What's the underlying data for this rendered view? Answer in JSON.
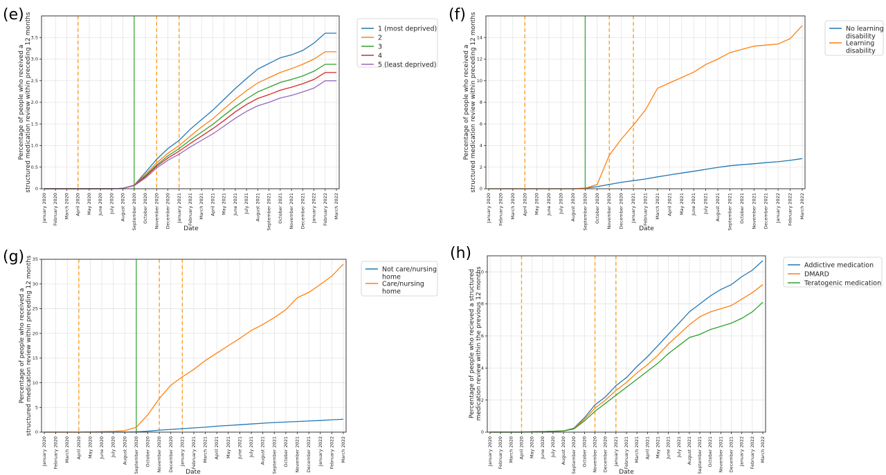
{
  "months": [
    "January 2020",
    "February 2020",
    "March 2020",
    "April 2020",
    "May 2020",
    "June 2020",
    "July 2020",
    "August 2020",
    "September 2020",
    "October 2020",
    "November 2020",
    "December 2020",
    "January 2021",
    "February 2021",
    "March 2021",
    "April 2021",
    "May 2021",
    "June 2021",
    "July 2021",
    "August 2021",
    "September 2021",
    "October 2021",
    "November 2021",
    "December 2021",
    "January 2022",
    "February 2022",
    "March 2022"
  ],
  "colors": {
    "blue": "#1f77b4",
    "orange": "#ff7f0e",
    "green": "#2ca02c",
    "red": "#d62728",
    "purple": "#9467bd",
    "green_vline": "#2ca02c",
    "orange_vline": "#ff9f1c"
  },
  "chart_data": [
    {
      "panel": "(e)",
      "type": "line",
      "xlabel": "Date",
      "ylabel": [
        "Percentage of people who received a",
        "structured medication review within preceding 12 months"
      ],
      "ylim": [
        0,
        4.0
      ],
      "yticks": [
        0,
        0.5,
        1.0,
        1.5,
        2.0,
        2.5,
        3.0,
        3.5
      ],
      "ytick_labels": [
        "0",
        "0.5",
        "1.0",
        "1.5",
        "2.0",
        "2.5",
        "3.0",
        "3.5"
      ],
      "vlines": {
        "green": [
          "September 2020"
        ],
        "orange_dashed": [
          "April 2020",
          "November 2020",
          "January 2021"
        ]
      },
      "legend_position": "right",
      "series": [
        {
          "name": "1 (most deprived)",
          "color": "blue",
          "values": [
            0,
            0,
            0,
            0,
            0,
            0,
            0,
            0.01,
            0.08,
            0.38,
            0.68,
            0.93,
            1.12,
            1.38,
            1.6,
            1.82,
            2.07,
            2.32,
            2.55,
            2.77,
            2.9,
            3.03,
            3.1,
            3.2,
            3.37,
            3.6,
            3.6
          ]
        },
        {
          "name": "2",
          "color": "orange",
          "values": [
            0,
            0,
            0,
            0,
            0,
            0,
            0,
            0.01,
            0.08,
            0.33,
            0.6,
            0.82,
            1.0,
            1.22,
            1.43,
            1.62,
            1.85,
            2.07,
            2.27,
            2.45,
            2.57,
            2.69,
            2.78,
            2.88,
            3.0,
            3.17,
            3.17
          ]
        },
        {
          "name": "3",
          "color": "green",
          "values": [
            0,
            0,
            0,
            0,
            0,
            0,
            0,
            0.01,
            0.08,
            0.3,
            0.55,
            0.76,
            0.93,
            1.13,
            1.31,
            1.49,
            1.7,
            1.9,
            2.08,
            2.24,
            2.35,
            2.46,
            2.53,
            2.61,
            2.72,
            2.88,
            2.88
          ]
        },
        {
          "name": "4",
          "color": "red",
          "values": [
            0,
            0,
            0,
            0,
            0,
            0,
            0,
            0.01,
            0.08,
            0.28,
            0.52,
            0.71,
            0.87,
            1.05,
            1.22,
            1.39,
            1.58,
            1.78,
            1.95,
            2.09,
            2.18,
            2.28,
            2.35,
            2.43,
            2.53,
            2.69,
            2.69
          ]
        },
        {
          "name": "5 (least deprived)",
          "color": "purple",
          "values": [
            0,
            0,
            0,
            0,
            0,
            0,
            0,
            0.01,
            0.07,
            0.25,
            0.48,
            0.66,
            0.8,
            0.97,
            1.12,
            1.27,
            1.45,
            1.63,
            1.79,
            1.92,
            2.0,
            2.1,
            2.16,
            2.24,
            2.33,
            2.5,
            2.5
          ]
        }
      ]
    },
    {
      "panel": "(f)",
      "type": "line",
      "xlabel": "Date",
      "ylabel": [
        "Percentage of people who received a",
        "structured medication review within preceding 12 months"
      ],
      "ylim": [
        0,
        16
      ],
      "yticks": [
        0,
        2,
        4,
        6,
        8,
        10,
        12,
        14
      ],
      "ytick_labels": [
        "0",
        "2",
        "4",
        "6",
        "8",
        "10",
        "12",
        "14"
      ],
      "vlines": {
        "green": [
          "September 2020"
        ],
        "orange_dashed": [
          "April 2020",
          "November 2020",
          "January 2021"
        ]
      },
      "legend_position": "right",
      "series": [
        {
          "name": [
            "No learning",
            "disability"
          ],
          "color": "blue",
          "values": [
            0,
            0,
            0,
            0,
            0,
            0,
            0,
            0,
            0.05,
            0.2,
            0.4,
            0.6,
            0.75,
            0.9,
            1.1,
            1.28,
            1.45,
            1.62,
            1.8,
            1.98,
            2.13,
            2.23,
            2.32,
            2.42,
            2.5,
            2.63,
            2.8
          ]
        },
        {
          "name": [
            "Learning",
            "disability"
          ],
          "color": "orange",
          "values": [
            0,
            0,
            0,
            0,
            0,
            0,
            0,
            0,
            0.05,
            0.4,
            3.1,
            4.6,
            5.9,
            7.3,
            9.3,
            9.8,
            10.3,
            10.8,
            11.5,
            12.0,
            12.6,
            12.9,
            13.2,
            13.3,
            13.4,
            13.9,
            15.1
          ]
        }
      ]
    },
    {
      "panel": "(g)",
      "type": "line",
      "xlabel": "Date",
      "ylabel": [
        "Percentage of people who received a",
        "structured medication review within preceding 12 months"
      ],
      "ylim": [
        0,
        35
      ],
      "yticks": [
        0,
        5,
        10,
        15,
        20,
        25,
        30,
        35
      ],
      "ytick_labels": [
        "0",
        "5",
        "10",
        "15",
        "20",
        "25",
        "30",
        "35"
      ],
      "vlines": {
        "green": [
          "September 2020"
        ],
        "orange_dashed": [
          "April 2020",
          "November 2020",
          "January 2021"
        ]
      },
      "legend_position": "right",
      "series": [
        {
          "name": [
            "Not care/nursing",
            "home"
          ],
          "color": "blue",
          "values": [
            0,
            0,
            0,
            0,
            0,
            0,
            0,
            0,
            0.05,
            0.2,
            0.4,
            0.55,
            0.7,
            0.85,
            1.0,
            1.2,
            1.35,
            1.5,
            1.65,
            1.8,
            1.95,
            2.05,
            2.15,
            2.25,
            2.35,
            2.5,
            2.6
          ]
        },
        {
          "name": [
            "Care/nursing",
            "home"
          ],
          "color": "orange",
          "values": [
            0,
            0,
            0,
            0,
            0.05,
            0.1,
            0.15,
            0.3,
            1.0,
            3.5,
            6.8,
            9.5,
            11.2,
            12.7,
            14.5,
            16.0,
            17.5,
            19.0,
            20.6,
            21.8,
            23.2,
            24.8,
            27.2,
            28.3,
            29.9,
            31.6,
            34.0
          ]
        }
      ]
    },
    {
      "panel": "(h)",
      "type": "line",
      "xlabel": "Date",
      "ylabel": [
        "Percentage of people who recieved a structured",
        "medication review within the previous 12 months"
      ],
      "ylim": [
        0,
        11
      ],
      "yticks": [
        0,
        2,
        4,
        6,
        8,
        10
      ],
      "ytick_labels": [
        "0",
        "2",
        "4",
        "6",
        "8",
        "10"
      ],
      "vlines": {
        "green": [],
        "orange_dashed": [
          "April 2020",
          "November 2020",
          "January 2021"
        ]
      },
      "legend_position": "top-right",
      "series": [
        {
          "name": "Addictive medication",
          "color": "blue",
          "values": [
            0,
            0,
            0,
            0,
            0.02,
            0.03,
            0.05,
            0.08,
            0.25,
            0.9,
            1.7,
            2.2,
            2.9,
            3.4,
            4.1,
            4.7,
            5.4,
            6.1,
            6.8,
            7.5,
            8.0,
            8.5,
            8.9,
            9.2,
            9.7,
            10.1,
            10.7
          ]
        },
        {
          "name": "DMARD",
          "color": "orange",
          "values": [
            0,
            0,
            0,
            0,
            0.02,
            0.03,
            0.05,
            0.08,
            0.22,
            0.8,
            1.5,
            2.0,
            2.6,
            3.1,
            3.7,
            4.2,
            4.8,
            5.5,
            6.1,
            6.7,
            7.2,
            7.5,
            7.7,
            7.9,
            8.3,
            8.7,
            9.2
          ]
        },
        {
          "name": "Teratogenic medication",
          "color": "green",
          "values": [
            0,
            0,
            0,
            0,
            0.02,
            0.03,
            0.05,
            0.07,
            0.2,
            0.7,
            1.3,
            1.8,
            2.3,
            2.8,
            3.3,
            3.8,
            4.3,
            4.9,
            5.4,
            5.9,
            6.1,
            6.4,
            6.6,
            6.8,
            7.1,
            7.5,
            8.1
          ]
        }
      ]
    }
  ]
}
